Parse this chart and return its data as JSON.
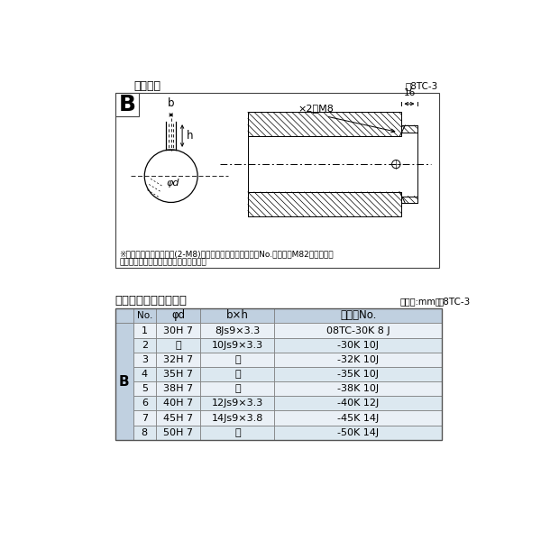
{
  "title_diagram": "軸穴形状",
  "fig_label": "团8TC-3",
  "table_title": "軸穴形状コード一覧表",
  "table_unit": "（単位:mm）",
  "table_label": "袆8TC-3",
  "note1": "※セットボルト用タップ(2-M8)が必要な場合は右記コードNo.の末尾にM82を付ける。",
  "note2": "（セットボルトは付属されています。）",
  "dim_label_16": "16",
  "dim_label_2M8": "×2－M8",
  "bg_color": "#ffffff",
  "table_header_bg": "#c0d0e0",
  "table_row_alt_bg": "#dce8f0",
  "table_row_bg": "#eaf0f6",
  "table_border": "#888888",
  "headers": [
    "No.",
    "φd",
    "b×h",
    "コードNo."
  ],
  "rows": [
    [
      "1",
      "30H 7",
      "8Js9×3.3",
      "08TC-30K 8 J"
    ],
    [
      "2",
      "〃",
      "10Js9×3.3",
      "-30K 10J"
    ],
    [
      "3",
      "32H 7",
      "〃",
      "-32K 10J"
    ],
    [
      "4",
      "35H 7",
      "〃",
      "-35K 10J"
    ],
    [
      "5",
      "38H 7",
      "〃",
      "-38K 10J"
    ],
    [
      "6",
      "40H 7",
      "12Js9×3.3",
      "-40K 12J"
    ],
    [
      "7",
      "45H 7",
      "14Js9×3.8",
      "-45K 14J"
    ],
    [
      "8",
      "50H 7",
      "〃",
      "-50K 14J"
    ]
  ]
}
